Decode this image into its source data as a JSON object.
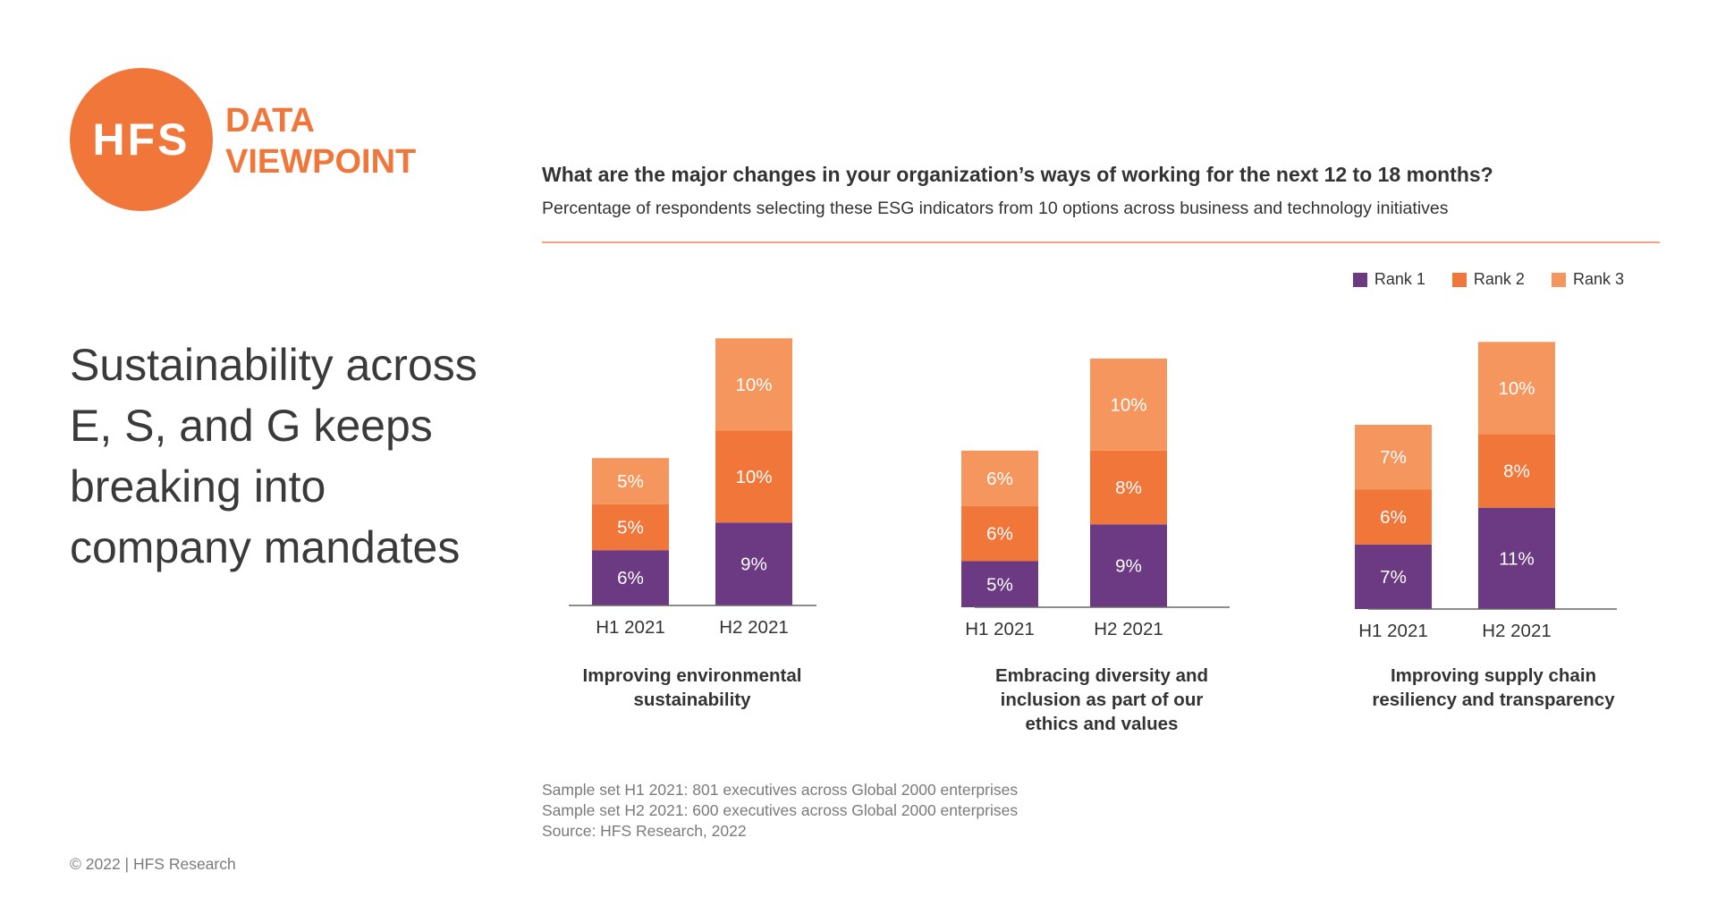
{
  "logo": {
    "text": "HFS"
  },
  "brand": {
    "line1": "DATA",
    "line2": "VIEWPOINT"
  },
  "headline": "Sustainability across E, S, and G keeps breaking into company mandates",
  "question": "What are the major changes in your organization’s ways of working for the next 12 to 18 months?",
  "subtitle": "Percentage of respondents selecting these ESG indicators from 10 options across business and technology initiatives",
  "colors": {
    "accent": "#f0763a",
    "rank1": "#6b3a82",
    "rank2": "#f0763a",
    "rank3": "#f5965f"
  },
  "chart_data": [
    {
      "type": "bar",
      "stacked": true,
      "caption": [
        "Improving environmental",
        "sustainability"
      ],
      "categories": [
        "H1 2021",
        "H2 2021"
      ],
      "series": [
        {
          "name": "Rank 1",
          "values": [
            6,
            9
          ]
        },
        {
          "name": "Rank 2",
          "values": [
            5,
            10
          ]
        },
        {
          "name": "Rank 3",
          "values": [
            5,
            10
          ]
        }
      ]
    },
    {
      "type": "bar",
      "stacked": true,
      "caption": [
        "Embracing diversity and",
        "inclusion as part of our",
        "ethics and values"
      ],
      "categories": [
        "H1 2021",
        "H2 2021"
      ],
      "series": [
        {
          "name": "Rank 1",
          "values": [
            5,
            9
          ]
        },
        {
          "name": "Rank 2",
          "values": [
            6,
            8
          ]
        },
        {
          "name": "Rank 3",
          "values": [
            6,
            10
          ]
        }
      ]
    },
    {
      "type": "bar",
      "stacked": true,
      "caption": [
        "Improving supply chain",
        "resiliency and transparency"
      ],
      "categories": [
        "H1 2021",
        "H2 2021"
      ],
      "series": [
        {
          "name": "Rank 1",
          "values": [
            7,
            11
          ]
        },
        {
          "name": "Rank 2",
          "values": [
            6,
            8
          ]
        },
        {
          "name": "Rank 3",
          "values": [
            7,
            10
          ]
        }
      ]
    }
  ],
  "legend": [
    {
      "label": "Rank 1",
      "color": "#6b3a82"
    },
    {
      "label": "Rank 2",
      "color": "#f0763a"
    },
    {
      "label": "Rank 3",
      "color": "#f5965f"
    }
  ],
  "notes": [
    "Sample set H1 2021: 801 executives across Global 2000 enterprises",
    "Sample set H2 2021: 600 executives across Global 2000 enterprises",
    "Source: HFS Research, 2022"
  ],
  "copyright": "© 2022 | HFS Research"
}
